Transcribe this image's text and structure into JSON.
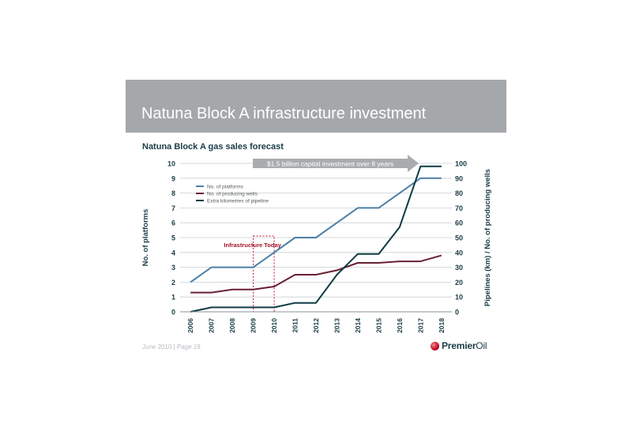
{
  "slide": {
    "title": "Natuna Block A infrastructure investment",
    "footer": "June 2010 | Page 19",
    "logo_premier": "Premier",
    "logo_oil": "Oil"
  },
  "chart_data": {
    "type": "line",
    "title": "Natuna Block A gas sales forecast",
    "x": [
      "2006",
      "2007",
      "2008",
      "2009",
      "2010",
      "2011",
      "2012",
      "2013",
      "2014",
      "2015",
      "2016",
      "2017",
      "2018"
    ],
    "ylabel_left": "No. of platforms",
    "ylabel_right": "Pipelines (km) / No. of producing wells",
    "ylim_left": [
      0,
      10
    ],
    "ylim_right": [
      0,
      100
    ],
    "yticks_left": [
      0,
      1,
      2,
      3,
      4,
      5,
      6,
      7,
      8,
      9,
      10
    ],
    "yticks_right": [
      0,
      10,
      20,
      30,
      40,
      50,
      60,
      70,
      80,
      90,
      100
    ],
    "grid": true,
    "legend_position": "top-left",
    "series": [
      {
        "name": "No. of platforms",
        "axis": "left",
        "color": "#4a7fa8",
        "values": [
          2,
          3,
          3,
          3,
          4,
          5,
          5,
          6,
          7,
          7,
          8,
          9,
          9
        ]
      },
      {
        "name": "No. of producing wells",
        "axis": "right",
        "color": "#6b1f33",
        "values": [
          13,
          13,
          15,
          15,
          17,
          25,
          25,
          28,
          33,
          33,
          34,
          34,
          38
        ]
      },
      {
        "name": "Extra kilometres of pipeline",
        "axis": "right",
        "color": "#0e3b43",
        "values": [
          0,
          3,
          3,
          3,
          3,
          6,
          6,
          25,
          39,
          39,
          57,
          98,
          98
        ]
      }
    ],
    "annotations": {
      "arrow_text": "$1.5 billion capital investment over 8 years",
      "box_text": "Infrastructure Today",
      "box_from": "2009",
      "box_to": "2010"
    }
  }
}
